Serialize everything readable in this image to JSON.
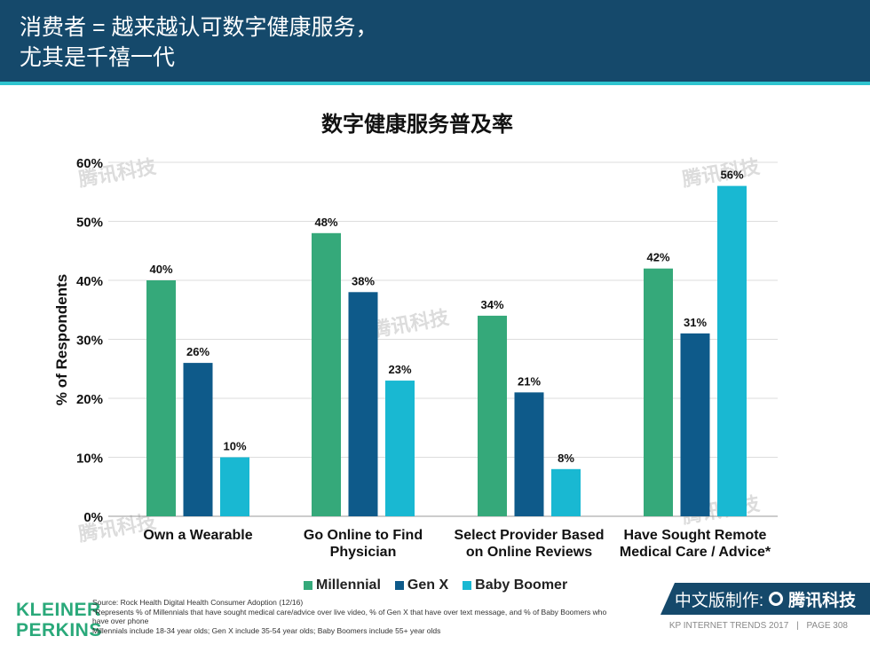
{
  "header": {
    "title_line1": "消费者 = 越来越认可数字健康服务，",
    "title_line2": "尤其是千禧一代"
  },
  "chart_data": {
    "type": "bar",
    "title": "数字健康服务普及率",
    "xlabel": "",
    "ylabel": "% of Respondents",
    "ylim": [
      0,
      60
    ],
    "yticks": [
      "0%",
      "10%",
      "20%",
      "30%",
      "40%",
      "50%",
      "60%"
    ],
    "categories": [
      [
        "Own a Wearable"
      ],
      [
        "Go Online to Find",
        "Physician"
      ],
      [
        "Select Provider Based",
        "on Online Reviews"
      ],
      [
        "Have Sought Remote",
        "Medical Care / Advice*"
      ]
    ],
    "series": [
      {
        "name": "Millennial",
        "color": "#35a97a",
        "values": [
          40,
          48,
          34,
          42
        ]
      },
      {
        "name": "Gen X",
        "color": "#0e5a8a",
        "values": [
          26,
          38,
          21,
          31
        ]
      },
      {
        "name": "Baby Boomer",
        "color": "#19b8d2",
        "values": [
          10,
          23,
          8,
          56
        ]
      }
    ],
    "value_suffix": "%",
    "grid": true,
    "legend": "bottom"
  },
  "watermark": "腾讯科技",
  "footer": {
    "logo_line1": "KLEINER",
    "logo_line2": "PERKINS",
    "source": "Source: Rock Health Digital Health Consumer Adoption (12/16)",
    "note1": "*Represents % of Millennials that have sought medical care/advice over live video, % of Gen X that have over text message, and % of Baby Boomers who have over phone",
    "note2": "Millennials include 18-34 year olds; Gen X include 35-54 year olds; Baby Boomers include 55+ year olds",
    "banner_prefix": "中文版制作:",
    "banner_brand": "腾讯科技",
    "report": "KP INTERNET TRENDS 2017",
    "separator": "|",
    "page": "PAGE 308"
  }
}
